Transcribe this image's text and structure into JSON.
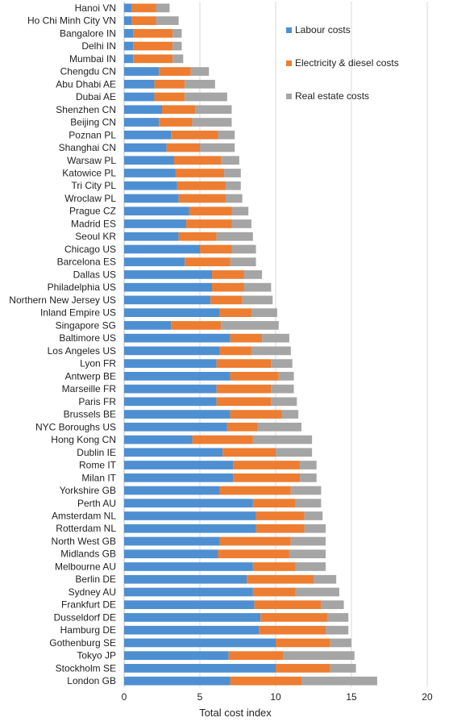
{
  "chart_data": {
    "type": "bar",
    "orientation": "horizontal",
    "stacked": true,
    "title": "",
    "xlabel": "Total cost index",
    "ylabel": "",
    "xlim": [
      0,
      20
    ],
    "xticks": [
      0,
      5,
      10,
      15,
      20
    ],
    "grid": "vertical",
    "legend_position": "top-right",
    "categories": [
      "Hanoi VN",
      "Ho Chi Minh City VN",
      "Bangalore IN",
      "Delhi IN",
      "Mumbai IN",
      "Chengdu CN",
      "Abu Dhabi AE",
      "Dubai AE",
      "Shenzhen CN",
      "Beijing CN",
      "Poznan PL",
      "Shanghai CN",
      "Warsaw PL",
      "Katowice PL",
      "Tri City PL",
      "Wroclaw PL",
      "Prague CZ",
      "Madrid ES",
      "Seoul KR",
      "Chicago US",
      "Barcelona ES",
      "Dallas US",
      "Philadelphia US",
      "Northern New Jersey US",
      "Inland Empire US",
      "Singapore SG",
      "Baltimore US",
      "Los Angeles US",
      "Lyon FR",
      "Antwerp BE",
      "Marseille FR",
      "Paris FR",
      "Brussels BE",
      "NYC Boroughs US",
      "Hong Kong CN",
      "Dublin IE",
      "Rome IT",
      "Milan IT",
      "Yorkshire GB",
      "Perth AU",
      "Amsterdam NL",
      "Rotterdam NL",
      "North West GB",
      "Midlands GB",
      "Melbourne AU",
      "Berlin DE",
      "Sydney AU",
      "Frankfurt DE",
      "Dusseldorf DE",
      "Hamburg DE",
      "Gothenburg SE",
      "Tokyo JP",
      "Stockholm SE",
      "London GB"
    ],
    "series": [
      {
        "name": "Labour costs",
        "color": "#4e8fd1",
        "values": [
          0.5,
          0.5,
          0.6,
          0.6,
          0.6,
          2.3,
          2.0,
          2.0,
          2.5,
          2.3,
          3.1,
          2.8,
          3.3,
          3.4,
          3.5,
          3.6,
          4.3,
          4.1,
          3.6,
          5.0,
          4.0,
          5.8,
          5.8,
          5.7,
          6.3,
          3.1,
          7.0,
          6.3,
          6.1,
          7.0,
          6.1,
          6.1,
          7.0,
          6.8,
          4.5,
          6.5,
          7.2,
          7.2,
          6.3,
          8.5,
          8.7,
          8.7,
          6.3,
          6.2,
          8.5,
          8.1,
          8.5,
          8.6,
          9.0,
          8.9,
          10.0,
          6.9,
          10.0,
          7.0
        ]
      },
      {
        "name": "Electricity & diesel costs",
        "color": "#ed7d31",
        "values": [
          1.6,
          1.6,
          2.6,
          2.6,
          2.6,
          2.1,
          2.0,
          2.0,
          2.2,
          2.2,
          3.1,
          2.2,
          3.1,
          3.2,
          3.2,
          3.1,
          2.8,
          3.0,
          2.5,
          2.1,
          3.0,
          2.1,
          2.1,
          2.1,
          2.1,
          3.3,
          2.1,
          2.1,
          3.6,
          3.2,
          3.6,
          3.6,
          3.4,
          2.0,
          4.0,
          3.5,
          4.4,
          4.4,
          4.7,
          2.8,
          3.2,
          3.2,
          4.7,
          4.7,
          2.8,
          4.4,
          2.8,
          4.4,
          4.4,
          4.4,
          3.6,
          3.6,
          3.6,
          4.7
        ]
      },
      {
        "name": "Real estate costs",
        "color": "#a5a5a5",
        "values": [
          0.9,
          1.5,
          0.6,
          0.6,
          0.7,
          1.2,
          2.0,
          2.8,
          2.4,
          2.6,
          1.1,
          2.3,
          1.2,
          1.1,
          1.0,
          1.1,
          1.1,
          1.3,
          2.4,
          1.6,
          1.7,
          1.2,
          1.8,
          2.0,
          1.7,
          3.8,
          1.8,
          2.6,
          1.4,
          1.0,
          1.5,
          1.7,
          1.1,
          2.9,
          3.9,
          2.4,
          1.1,
          1.1,
          2.0,
          1.7,
          1.2,
          1.4,
          2.3,
          2.4,
          2.0,
          1.5,
          2.9,
          1.5,
          1.4,
          1.5,
          1.4,
          4.7,
          1.7,
          5.0
        ]
      }
    ]
  }
}
